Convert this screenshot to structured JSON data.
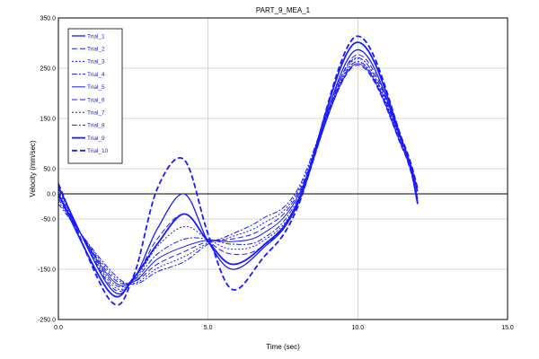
{
  "chart_data": {
    "type": "line",
    "title": "PART_9_MEA_1",
    "xlabel": "Time (sec)",
    "ylabel": "Velocity (mm/sec)",
    "xlim": [
      0,
      15
    ],
    "ylim": [
      -250,
      350
    ],
    "x_ticks": [
      "0.0",
      "5.0",
      "10.0",
      "15.0"
    ],
    "y_ticks": [
      "350.0",
      "250.0",
      "150.0",
      "50.0",
      "0.0",
      "-50.0",
      "-150.0",
      "-250.0"
    ],
    "grid": true,
    "zero_line": true,
    "legend_position": "top-left",
    "line_color": "#1a1aff",
    "series": [
      {
        "name": "Trial_1",
        "dash": "solid",
        "width": 1.3,
        "x": [
          0,
          1.7,
          2.5,
          3.3,
          4.2,
          5.0,
          5.8,
          6.8,
          8.0,
          9.9,
          11.5,
          12.0
        ],
        "y": [
          15,
          -185,
          -170,
          -70,
          0,
          -95,
          -150,
          -110,
          -20,
          285,
          100,
          5
        ]
      },
      {
        "name": "Trial_2",
        "dash": "6,3",
        "width": 1.0,
        "x": [
          0,
          1.7,
          2.5,
          3.3,
          4.2,
          5.0,
          5.8,
          6.8,
          8.0,
          9.9,
          11.5,
          12.0
        ],
        "y": [
          10,
          -180,
          -170,
          -90,
          -40,
          -93,
          -120,
          -105,
          -20,
          275,
          98,
          0
        ]
      },
      {
        "name": "Trial_3",
        "dash": "2,2",
        "width": 1.0,
        "x": [
          0,
          1.7,
          2.5,
          3.3,
          4.2,
          5.0,
          5.8,
          6.8,
          8.0,
          9.9,
          11.5,
          12.0
        ],
        "y": [
          5,
          -175,
          -172,
          -105,
          -65,
          -90,
          -110,
          -95,
          -15,
          268,
          95,
          -5
        ]
      },
      {
        "name": "Trial_4",
        "dash": "6,2,2,2",
        "width": 1.0,
        "x": [
          0,
          1.7,
          2.5,
          3.3,
          4.2,
          5.0,
          5.8,
          6.8,
          8.0,
          9.9,
          11.5,
          12.0
        ],
        "y": [
          0,
          -170,
          -172,
          -120,
          -90,
          -90,
          -100,
          -90,
          -10,
          262,
          92,
          -10
        ]
      },
      {
        "name": "Trial_5",
        "dash": "solid",
        "width": 1.0,
        "x": [
          0,
          1.7,
          2.5,
          3.3,
          4.2,
          5.0,
          5.8,
          6.8,
          8.0,
          9.9,
          11.5,
          12.0
        ],
        "y": [
          -5,
          -165,
          -175,
          -130,
          -105,
          -92,
          -95,
          -80,
          -5,
          258,
          90,
          -15
        ]
      },
      {
        "name": "Trial_6",
        "dash": "6,3",
        "width": 1.0,
        "x": [
          0,
          1.7,
          2.5,
          3.3,
          4.2,
          5.0,
          5.8,
          6.8,
          8.0,
          9.9,
          11.5,
          12.0
        ],
        "y": [
          -10,
          -160,
          -175,
          -140,
          -115,
          -95,
          -90,
          -70,
          0,
          255,
          88,
          -20
        ]
      },
      {
        "name": "Trial_7",
        "dash": "2,2",
        "width": 1.0,
        "x": [
          0,
          1.7,
          2.5,
          3.3,
          4.2,
          5.0,
          5.8,
          6.8,
          8.0,
          9.9,
          11.5,
          12.0
        ],
        "y": [
          -15,
          -155,
          -178,
          -148,
          -125,
          -98,
          -85,
          -60,
          5,
          262,
          92,
          -15
        ]
      },
      {
        "name": "Trial_8",
        "dash": "6,2,2,2",
        "width": 1.0,
        "x": [
          0,
          1.7,
          2.5,
          3.3,
          4.2,
          5.0,
          5.8,
          6.8,
          8.0,
          9.9,
          11.5,
          12.0
        ],
        "y": [
          -20,
          -150,
          -180,
          -155,
          -135,
          -100,
          -80,
          -50,
          10,
          270,
          95,
          -10
        ]
      },
      {
        "name": "Trial_9",
        "dash": "solid",
        "width": 1.8,
        "x": [
          0,
          1.7,
          2.5,
          3.3,
          4.2,
          5.0,
          5.8,
          6.8,
          8.0,
          9.9,
          11.5,
          12.0
        ],
        "y": [
          0,
          -195,
          -168,
          -100,
          -40,
          -95,
          -140,
          -105,
          -15,
          300,
          102,
          -20
        ]
      },
      {
        "name": "Trial_10",
        "dash": "6,3",
        "width": 1.8,
        "x": [
          0,
          1.7,
          2.5,
          3.3,
          4.2,
          5.0,
          5.8,
          6.8,
          8.0,
          9.9,
          11.5,
          12.0
        ],
        "y": [
          20,
          -210,
          -165,
          10,
          68,
          -80,
          -190,
          -130,
          -25,
          312,
          105,
          10
        ]
      }
    ]
  }
}
